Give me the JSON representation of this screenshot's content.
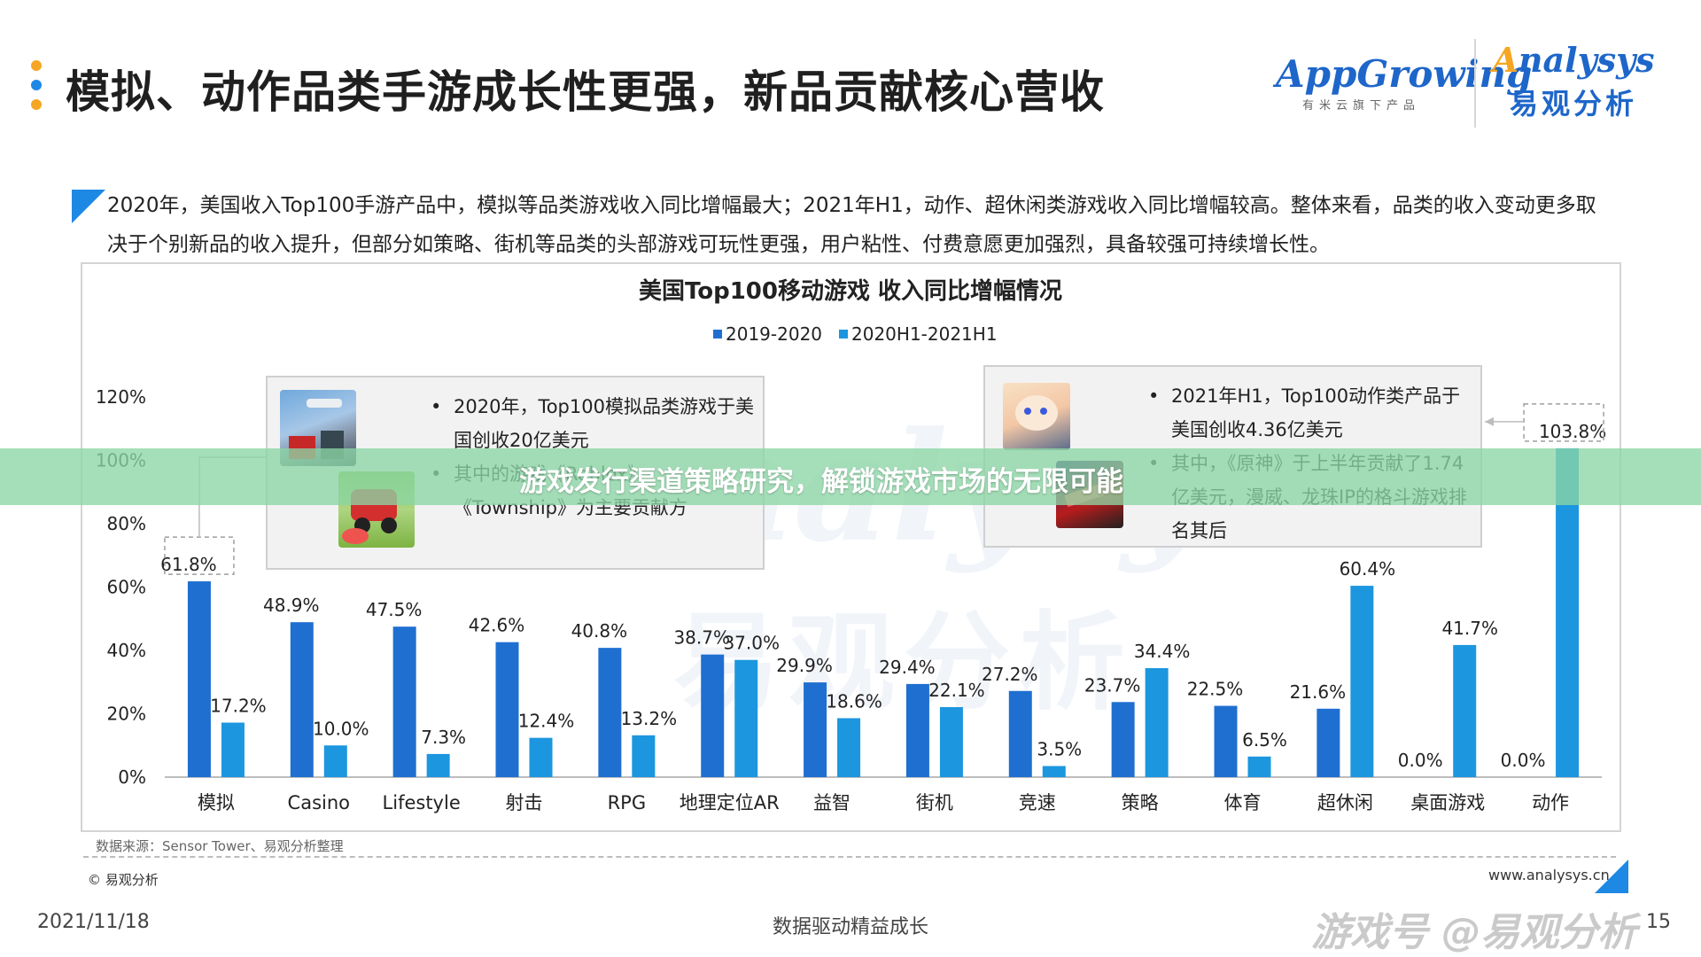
{
  "header": {
    "title": "模拟、动作品类手游成长性更强，新品贡献核心营收",
    "dot_colors": [
      "#f5a623",
      "#1e88e5",
      "#f5a623"
    ]
  },
  "logos": {
    "appgrowing_main": "AppGrowing",
    "appgrowing_sub": "有米云旗下产品",
    "analysys_main_a": "A",
    "analysys_main_rest": "nalysys",
    "analysys_sub": "易观分析"
  },
  "description": "2020年，美国收入Top100手游产品中，模拟等品类游戏收入同比增幅最大；2021年H1，动作、超休闲类游戏收入同比增幅较高。整体来看，品类的收入变动更多取决于个别新品的收入提升，但部分如策略、街机等品类的头部游戏可玩性更强，用户粘性、付费意愿更加强烈，具备较强可持续增长性。",
  "watermark": {
    "line1": "Analysys",
    "line2": "易观分析"
  },
  "callouts": {
    "left": [
      "2020年，Top100模拟品类游戏于美国创收20亿美元",
      "其中的游戏《Roblox》、《Township》为主要贡献方"
    ],
    "right": [
      "2021年H1，Top100动作类产品于美国创收4.36亿美元",
      "其中，《原神》于上半年贡献了1.74亿美元，漫威、龙珠IP的格斗游戏排名其后"
    ]
  },
  "chart_data": {
    "type": "bar",
    "title": "美国Top100移动游戏 收入同比增幅情况",
    "categories": [
      "模拟",
      "Casino",
      "Lifestyle",
      "射击",
      "RPG",
      "地理定位AR",
      "益智",
      "街机",
      "竞速",
      "策略",
      "体育",
      "超休闲",
      "桌面游戏",
      "动作"
    ],
    "series": [
      {
        "name": "2019-2020",
        "color": "#1f6fd1",
        "values": [
          61.8,
          48.9,
          47.5,
          42.6,
          40.8,
          38.7,
          29.9,
          29.4,
          27.2,
          23.7,
          22.5,
          21.6,
          0.0,
          0.0
        ],
        "labels": [
          "61.8%",
          "48.9%",
          "47.5%",
          "42.6%",
          "40.8%",
          "38.7%",
          "29.9%",
          "29.4%",
          "27.2%",
          "23.7%",
          "22.5%",
          "21.6%",
          "0.0%",
          "0.0%"
        ]
      },
      {
        "name": "2020H1-2021H1",
        "color": "#1c96df",
        "values": [
          17.2,
          10.0,
          7.3,
          12.4,
          13.2,
          37.0,
          18.6,
          22.1,
          3.5,
          34.4,
          6.5,
          60.4,
          41.7,
          103.8
        ],
        "labels": [
          "17.2%",
          "10.0%",
          "7.3%",
          "12.4%",
          "13.2%",
          "37.0%",
          "18.6%",
          "22.1%",
          "3.5%",
          "34.4%",
          "6.5%",
          "60.4%",
          "41.7%",
          "103.8%"
        ]
      }
    ],
    "y_ticks": [
      "0%",
      "20%",
      "40%",
      "60%",
      "80%",
      "100%",
      "120%"
    ],
    "y_tick_values": [
      0,
      20,
      40,
      60,
      80,
      100,
      120
    ],
    "ylim": [
      0,
      120
    ],
    "grid": false,
    "legend_position": "top"
  },
  "footer": {
    "source": "数据来源：Sensor Tower、易观分析整理",
    "copyright": "© 易观分析",
    "url": "www.analysys.cn",
    "date": "2021/11/18",
    "slogan": "数据驱动精益成长",
    "page": "15",
    "corner_watermark": "游戏号 @易观分析"
  },
  "overlay": {
    "text": "游戏发行渠道策略研究，解锁游戏市场的无限可能"
  }
}
